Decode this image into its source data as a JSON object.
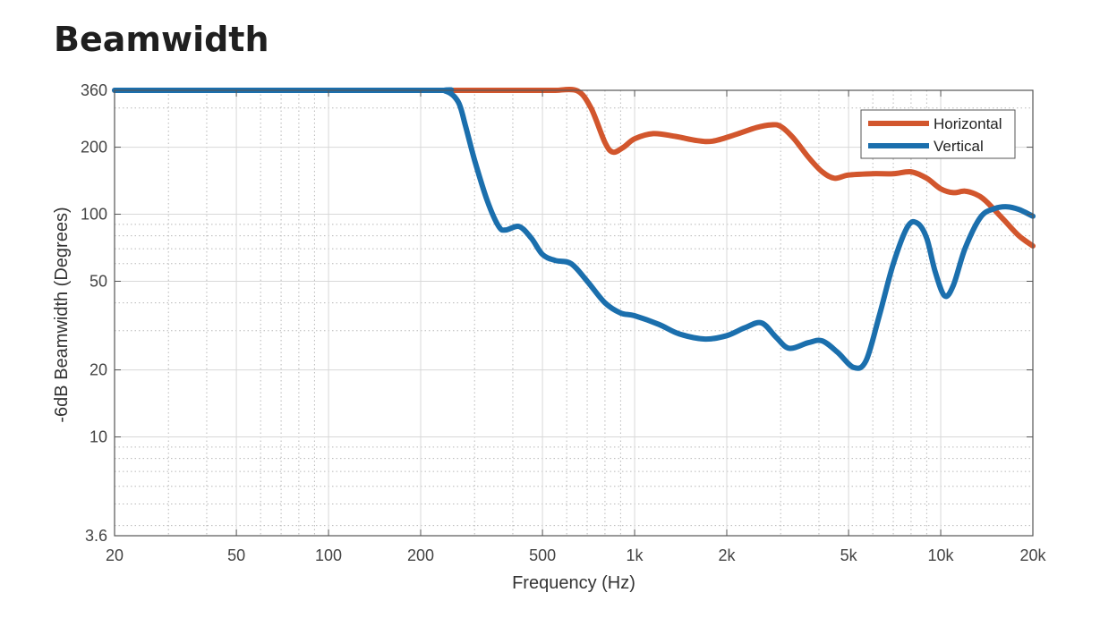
{
  "chart_data": {
    "type": "line",
    "title": "Beamwidth",
    "xlabel": "Frequency (Hz)",
    "ylabel": "-6dB Beamwidth (Degrees)",
    "x_scale": "log",
    "y_scale": "log",
    "xlim": [
      20,
      20000
    ],
    "ylim": [
      3.6,
      360
    ],
    "x_ticks": [
      {
        "value": 20,
        "label": "20"
      },
      {
        "value": 50,
        "label": "50"
      },
      {
        "value": 100,
        "label": "100"
      },
      {
        "value": 200,
        "label": "200"
      },
      {
        "value": 500,
        "label": "500"
      },
      {
        "value": 1000,
        "label": "1k"
      },
      {
        "value": 2000,
        "label": "2k"
      },
      {
        "value": 5000,
        "label": "5k"
      },
      {
        "value": 10000,
        "label": "10k"
      },
      {
        "value": 20000,
        "label": "20k"
      }
    ],
    "y_ticks": [
      {
        "value": 3.6,
        "label": "3.6"
      },
      {
        "value": 10,
        "label": "10"
      },
      {
        "value": 20,
        "label": "20"
      },
      {
        "value": 50,
        "label": "50"
      },
      {
        "value": 100,
        "label": "100"
      },
      {
        "value": 200,
        "label": "200"
      },
      {
        "value": 360,
        "label": "360"
      }
    ],
    "grid": true,
    "legend_position": "top-right",
    "series": [
      {
        "name": "Horizontal",
        "color": "#d2562d",
        "points": [
          [
            20,
            360
          ],
          [
            200,
            360
          ],
          [
            500,
            360
          ],
          [
            550,
            360
          ],
          [
            650,
            358
          ],
          [
            720,
            300
          ],
          [
            800,
            210
          ],
          [
            850,
            190
          ],
          [
            920,
            200
          ],
          [
            1000,
            218
          ],
          [
            1150,
            230
          ],
          [
            1350,
            224
          ],
          [
            1600,
            214
          ],
          [
            1800,
            213
          ],
          [
            2100,
            226
          ],
          [
            2500,
            245
          ],
          [
            2800,
            252
          ],
          [
            3000,
            248
          ],
          [
            3300,
            220
          ],
          [
            3700,
            180
          ],
          [
            4100,
            155
          ],
          [
            4500,
            145
          ],
          [
            5000,
            150
          ],
          [
            6000,
            152
          ],
          [
            7000,
            152
          ],
          [
            8000,
            155
          ],
          [
            9000,
            145
          ],
          [
            10000,
            130
          ],
          [
            11000,
            125
          ],
          [
            12000,
            127
          ],
          [
            13000,
            123
          ],
          [
            14000,
            115
          ],
          [
            16000,
            95
          ],
          [
            18000,
            80
          ],
          [
            20000,
            72
          ]
        ]
      },
      {
        "name": "Vertical",
        "color": "#1b6fad",
        "points": [
          [
            20,
            360
          ],
          [
            200,
            360
          ],
          [
            240,
            358
          ],
          [
            265,
            320
          ],
          [
            280,
            250
          ],
          [
            300,
            175
          ],
          [
            330,
            115
          ],
          [
            360,
            88
          ],
          [
            380,
            85
          ],
          [
            420,
            88
          ],
          [
            460,
            78
          ],
          [
            500,
            66
          ],
          [
            550,
            62
          ],
          [
            620,
            60
          ],
          [
            700,
            50
          ],
          [
            800,
            40
          ],
          [
            900,
            36
          ],
          [
            1000,
            35
          ],
          [
            1200,
            32
          ],
          [
            1400,
            29
          ],
          [
            1700,
            27.5
          ],
          [
            2000,
            28.5
          ],
          [
            2300,
            31
          ],
          [
            2600,
            32.5
          ],
          [
            2900,
            28
          ],
          [
            3200,
            25
          ],
          [
            3700,
            26.5
          ],
          [
            4100,
            27
          ],
          [
            4600,
            24
          ],
          [
            5200,
            20.5
          ],
          [
            5700,
            22
          ],
          [
            6300,
            35
          ],
          [
            7000,
            60
          ],
          [
            7800,
            88
          ],
          [
            8400,
            91
          ],
          [
            9000,
            78
          ],
          [
            9600,
            55
          ],
          [
            10300,
            43
          ],
          [
            11000,
            48
          ],
          [
            12000,
            70
          ],
          [
            13500,
            97
          ],
          [
            15000,
            106
          ],
          [
            16500,
            108
          ],
          [
            18000,
            105
          ],
          [
            20000,
            98
          ]
        ]
      }
    ]
  }
}
